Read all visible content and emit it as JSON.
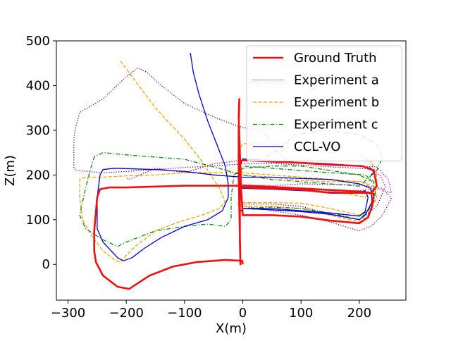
{
  "chart_data": {
    "type": "line",
    "title": "",
    "xlabel": "X(m)",
    "ylabel": "Z(m)",
    "xlim": [
      -320,
      280
    ],
    "ylim": [
      -80,
      500
    ],
    "xticks": [
      -300,
      -200,
      -100,
      0,
      100,
      200
    ],
    "yticks": [
      0,
      100,
      200,
      300,
      400,
      500
    ],
    "xtick_labels": [
      "−300",
      "−200",
      "−100",
      "0",
      "100",
      "200"
    ],
    "ytick_labels": [
      "0",
      "100",
      "200",
      "300",
      "400",
      "500"
    ],
    "grid": false,
    "legend_position": "top-right",
    "series": [
      {
        "name": "Ground Truth",
        "color": "#ee1111",
        "style": "solid",
        "width": 2.6,
        "points": [
          [
            0,
            0
          ],
          [
            -1,
            8
          ],
          [
            -30,
            10
          ],
          [
            -80,
            5
          ],
          [
            -120,
            -5
          ],
          [
            -160,
            -25
          ],
          [
            -195,
            -55
          ],
          [
            -215,
            -50
          ],
          [
            -240,
            -25
          ],
          [
            -252,
            5
          ],
          [
            -255,
            30
          ],
          [
            -255,
            75
          ],
          [
            -250,
            150
          ],
          [
            -245,
            168
          ],
          [
            -230,
            172
          ],
          [
            -200,
            172
          ],
          [
            -100,
            176
          ],
          [
            0,
            176
          ],
          [
            40,
            174
          ],
          [
            100,
            170
          ],
          [
            200,
            163
          ],
          [
            220,
            160
          ],
          [
            230,
            175
          ],
          [
            225,
            210
          ],
          [
            205,
            220
          ],
          [
            150,
            223
          ],
          [
            100,
            227
          ],
          [
            0,
            233
          ],
          [
            -5,
            230
          ],
          [
            -4,
            200
          ],
          [
            -5,
            150
          ],
          [
            -5,
            50
          ],
          [
            -4,
            0
          ],
          [
            -7,
            200
          ],
          [
            -7,
            300
          ],
          [
            -6,
            370
          ],
          [
            -7,
            330
          ],
          [
            -3,
            170
          ],
          [
            0,
            110
          ],
          [
            50,
            110
          ],
          [
            100,
            107
          ],
          [
            150,
            98
          ],
          [
            200,
            92
          ],
          [
            215,
            105
          ],
          [
            222,
            130
          ],
          [
            225,
            158
          ],
          [
            215,
            160
          ],
          [
            200,
            160
          ],
          [
            150,
            160
          ],
          [
            100,
            167
          ],
          [
            50,
            170
          ],
          [
            0,
            172
          ]
        ]
      },
      {
        "name": "Experiment a",
        "color": "#800080",
        "style": "dotted",
        "width": 1.3,
        "points": [
          [
            -198,
            193
          ],
          [
            -195,
            190
          ],
          [
            -150,
            215
          ],
          [
            -100,
            205
          ],
          [
            -50,
            225
          ],
          [
            0,
            233
          ],
          [
            50,
            228
          ],
          [
            100,
            227
          ],
          [
            150,
            223
          ],
          [
            200,
            220
          ],
          [
            230,
            218
          ],
          [
            250,
            190
          ],
          [
            255,
            160
          ],
          [
            230,
            170
          ],
          [
            200,
            165
          ],
          [
            150,
            165
          ],
          [
            100,
            168
          ],
          [
            50,
            170
          ],
          [
            0,
            172
          ],
          [
            -3,
            175
          ],
          [
            0,
            178
          ],
          [
            50,
            176
          ],
          [
            100,
            180
          ],
          [
            200,
            178
          ],
          [
            240,
            170
          ],
          [
            255,
            148
          ],
          [
            240,
            110
          ],
          [
            220,
            85
          ],
          [
            200,
            75
          ],
          [
            150,
            95
          ],
          [
            100,
            110
          ],
          [
            50,
            120
          ],
          [
            0,
            130
          ],
          [
            0,
            135
          ],
          [
            50,
            135
          ],
          [
            100,
            130
          ],
          [
            150,
            112
          ],
          [
            200,
            100
          ],
          [
            230,
            130
          ],
          [
            245,
            175
          ],
          [
            235,
            200
          ],
          [
            220,
            213
          ],
          [
            200,
            215
          ],
          [
            150,
            218
          ],
          [
            100,
            222
          ],
          [
            50,
            226
          ],
          [
            0,
            225
          ],
          [
            -50,
            220
          ],
          [
            -100,
            217
          ],
          [
            -150,
            212
          ],
          [
            -200,
            208
          ],
          [
            -240,
            205
          ],
          [
            -285,
            210
          ],
          [
            -290,
            215
          ],
          [
            -290,
            280
          ],
          [
            -288,
            300
          ],
          [
            -280,
            340
          ],
          [
            -240,
            370
          ],
          [
            -200,
            420
          ],
          [
            -180,
            440
          ],
          [
            -165,
            430
          ],
          [
            -140,
            400
          ],
          [
            -100,
            360
          ],
          [
            -50,
            330
          ],
          [
            -10,
            310
          ],
          [
            20,
            300
          ],
          [
            40,
            290
          ],
          [
            50,
            270
          ],
          [
            60,
            250
          ],
          [
            80,
            230
          ]
        ]
      },
      {
        "name": "Experiment b",
        "color": "#eea500",
        "style": "dashed",
        "width": 1.3,
        "points": [
          [
            -210,
            455
          ],
          [
            -190,
            420
          ],
          [
            -150,
            350
          ],
          [
            -100,
            280
          ],
          [
            -70,
            230
          ],
          [
            -40,
            170
          ],
          [
            -30,
            140
          ],
          [
            -40,
            125
          ],
          [
            -70,
            110
          ],
          [
            -110,
            95
          ],
          [
            -150,
            75
          ],
          [
            -185,
            40
          ],
          [
            -200,
            20
          ],
          [
            -210,
            5
          ],
          [
            -220,
            10
          ],
          [
            -240,
            30
          ],
          [
            -260,
            65
          ],
          [
            -275,
            100
          ],
          [
            -280,
            150
          ],
          [
            -280,
            190
          ],
          [
            -270,
            195
          ],
          [
            -240,
            195
          ],
          [
            -200,
            198
          ],
          [
            -150,
            200
          ],
          [
            -100,
            205
          ],
          [
            -50,
            205
          ],
          [
            0,
            205
          ],
          [
            50,
            200
          ],
          [
            100,
            195
          ],
          [
            150,
            190
          ],
          [
            200,
            185
          ],
          [
            225,
            175
          ],
          [
            230,
            150
          ],
          [
            215,
            110
          ],
          [
            200,
            95
          ],
          [
            150,
            110
          ],
          [
            100,
            125
          ],
          [
            50,
            130
          ],
          [
            0,
            130
          ],
          [
            -10,
            135
          ],
          [
            0,
            138
          ],
          [
            50,
            138
          ],
          [
            100,
            137
          ],
          [
            150,
            125
          ],
          [
            200,
            110
          ],
          [
            220,
            125
          ],
          [
            222,
            160
          ],
          [
            210,
            185
          ],
          [
            200,
            185
          ],
          [
            150,
            185
          ],
          [
            100,
            188
          ],
          [
            50,
            195
          ],
          [
            0,
            200
          ],
          [
            -5,
            230
          ],
          [
            -5,
            260
          ],
          [
            0,
            270
          ],
          [
            50,
            270
          ],
          [
            100,
            255
          ],
          [
            200,
            245
          ],
          [
            220,
            230
          ],
          [
            230,
            200
          ],
          [
            230,
            170
          ],
          [
            210,
            150
          ],
          [
            150,
            165
          ],
          [
            100,
            170
          ],
          [
            50,
            170
          ],
          [
            0,
            172
          ]
        ]
      },
      {
        "name": "Experiment c",
        "color": "#118811",
        "style": "dashdot",
        "width": 1.3,
        "points": [
          [
            40,
            240
          ],
          [
            60,
            255
          ],
          [
            90,
            290
          ],
          [
            140,
            300
          ],
          [
            200,
            290
          ],
          [
            230,
            270
          ],
          [
            240,
            240
          ],
          [
            230,
            210
          ],
          [
            200,
            175
          ],
          [
            150,
            180
          ],
          [
            100,
            185
          ],
          [
            50,
            190
          ],
          [
            0,
            200
          ],
          [
            -50,
            218
          ],
          [
            -100,
            235
          ],
          [
            -150,
            240
          ],
          [
            -200,
            245
          ],
          [
            -240,
            250
          ],
          [
            -255,
            240
          ],
          [
            -262,
            210
          ],
          [
            -270,
            170
          ],
          [
            -280,
            110
          ],
          [
            -270,
            80
          ],
          [
            -240,
            55
          ],
          [
            -215,
            40
          ],
          [
            -200,
            50
          ],
          [
            -150,
            75
          ],
          [
            -100,
            85
          ],
          [
            -60,
            90
          ],
          [
            -30,
            85
          ],
          [
            -20,
            100
          ],
          [
            -20,
            150
          ],
          [
            -15,
            200
          ],
          [
            0,
            215
          ],
          [
            50,
            220
          ],
          [
            100,
            220
          ],
          [
            150,
            210
          ],
          [
            200,
            200
          ],
          [
            230,
            180
          ],
          [
            225,
            140
          ],
          [
            215,
            120
          ],
          [
            200,
            100
          ],
          [
            150,
            115
          ],
          [
            100,
            120
          ],
          [
            50,
            122
          ],
          [
            0,
            125
          ],
          [
            -3,
            120
          ],
          [
            0,
            125
          ],
          [
            50,
            128
          ],
          [
            100,
            125
          ],
          [
            150,
            115
          ],
          [
            200,
            108
          ],
          [
            215,
            120
          ],
          [
            225,
            150
          ],
          [
            225,
            185
          ],
          [
            210,
            200
          ],
          [
            150,
            205
          ],
          [
            100,
            210
          ],
          [
            50,
            215
          ],
          [
            0,
            220
          ]
        ]
      },
      {
        "name": "CCL-VO",
        "color": "#0000cc",
        "style": "solid",
        "width": 1.3,
        "points": [
          [
            -90,
            473
          ],
          [
            -85,
            430
          ],
          [
            -75,
            380
          ],
          [
            -60,
            320
          ],
          [
            -45,
            270
          ],
          [
            -30,
            220
          ],
          [
            -25,
            180
          ],
          [
            -25,
            150
          ],
          [
            -35,
            120
          ],
          [
            -60,
            100
          ],
          [
            -100,
            85
          ],
          [
            -140,
            60
          ],
          [
            -170,
            35
          ],
          [
            -190,
            15
          ],
          [
            -205,
            8
          ],
          [
            -215,
            15
          ],
          [
            -240,
            50
          ],
          [
            -250,
            80
          ],
          [
            -250,
            150
          ],
          [
            -245,
            200
          ],
          [
            -240,
            212
          ],
          [
            -220,
            215
          ],
          [
            -150,
            212
          ],
          [
            -100,
            208
          ],
          [
            -50,
            200
          ],
          [
            0,
            195
          ],
          [
            50,
            195
          ],
          [
            100,
            192
          ],
          [
            150,
            190
          ],
          [
            200,
            180
          ],
          [
            220,
            170
          ],
          [
            222,
            140
          ],
          [
            210,
            110
          ],
          [
            200,
            100
          ],
          [
            150,
            112
          ],
          [
            100,
            118
          ],
          [
            50,
            122
          ],
          [
            0,
            125
          ],
          [
            -3,
            120
          ],
          [
            0,
            125
          ],
          [
            50,
            125
          ],
          [
            100,
            120
          ],
          [
            150,
            115
          ],
          [
            200,
            108
          ],
          [
            210,
            118
          ],
          [
            215,
            150
          ],
          [
            210,
            165
          ],
          [
            200,
            160
          ],
          [
            150,
            162
          ],
          [
            100,
            165
          ],
          [
            50,
            168
          ],
          [
            0,
            170
          ],
          [
            -5,
            180
          ],
          [
            -5,
            220
          ],
          [
            0,
            236
          ],
          [
            50,
            232
          ],
          [
            100,
            228
          ],
          [
            150,
            225
          ],
          [
            200,
            220
          ],
          [
            220,
            215
          ],
          [
            225,
            205
          ],
          [
            220,
            200
          ]
        ]
      }
    ]
  }
}
